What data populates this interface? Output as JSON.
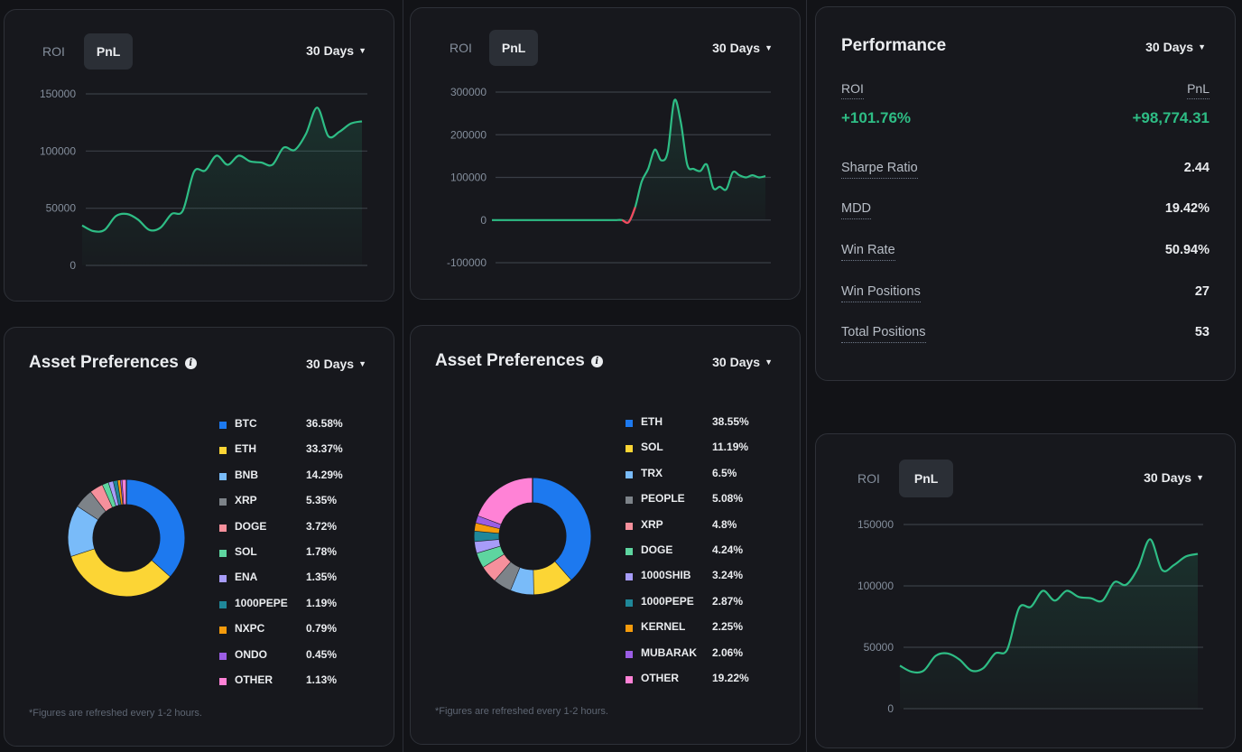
{
  "tabs": {
    "roi": "ROI",
    "pnl": "PnL"
  },
  "period": "30 Days",
  "pnl_chart_a": {
    "chart_data": {
      "type": "area",
      "yticks": [
        "150000",
        "100000",
        "50000",
        "0"
      ],
      "ylim": [
        0,
        150000
      ],
      "values": [
        35000,
        30000,
        31000,
        43000,
        45000,
        40000,
        31000,
        33000,
        45000,
        48000,
        82000,
        83000,
        96000,
        88000,
        96000,
        91000,
        90000,
        88000,
        103000,
        101000,
        115000,
        138000,
        113000,
        117000,
        124000,
        126000
      ]
    }
  },
  "pnl_chart_b": {
    "chart_data": {
      "type": "area",
      "yticks": [
        "300000",
        "200000",
        "100000",
        "0",
        "-100000"
      ],
      "ylim": [
        -100000,
        300000
      ],
      "values": [
        0,
        0,
        0,
        0,
        0,
        0,
        0,
        0,
        0,
        0,
        0,
        0,
        0,
        0,
        0,
        0,
        0,
        0,
        0,
        0,
        0,
        -5000,
        30000,
        90000,
        120000,
        165000,
        140000,
        160000,
        280000,
        230000,
        130000,
        120000,
        115000,
        130000,
        75000,
        78000,
        72000,
        112000,
        105000,
        100000,
        105000,
        100000,
        103000
      ]
    }
  },
  "asset_prefs_a": {
    "title": "Asset Preferences",
    "note": "*Figures are refreshed every 1-2 hours.",
    "chart_data": {
      "type": "pie",
      "labels": [
        "BTC",
        "ETH",
        "BNB",
        "XRP",
        "DOGE",
        "SOL",
        "ENA",
        "1000PEPE",
        "NXPC",
        "ONDO",
        "OTHER"
      ],
      "values": [
        36.58,
        33.37,
        14.29,
        5.35,
        3.72,
        1.78,
        1.35,
        1.19,
        0.79,
        0.45,
        1.13
      ],
      "display": [
        "36.58%",
        "33.37%",
        "14.29%",
        "5.35%",
        "3.72%",
        "1.78%",
        "1.35%",
        "1.19%",
        "0.79%",
        "0.45%",
        "1.13%"
      ],
      "colors": [
        "#1d79ef",
        "#fcd535",
        "#79bbf9",
        "#7d8389",
        "#f6909c",
        "#5ed5a0",
        "#a79cf9",
        "#1f8799",
        "#f59b0c",
        "#9b5de5",
        "#ff82d6"
      ]
    }
  },
  "asset_prefs_b": {
    "title": "Asset Preferences",
    "note": "*Figures are refreshed every 1-2 hours.",
    "chart_data": {
      "type": "pie",
      "labels": [
        "ETH",
        "SOL",
        "TRX",
        "PEOPLE",
        "XRP",
        "DOGE",
        "1000SHIB",
        "1000PEPE",
        "KERNEL",
        "MUBARAK",
        "OTHER"
      ],
      "values": [
        38.55,
        11.19,
        6.5,
        5.08,
        4.8,
        4.24,
        3.24,
        2.87,
        2.25,
        2.06,
        19.22
      ],
      "display": [
        "38.55%",
        "11.19%",
        "6.5%",
        "5.08%",
        "4.8%",
        "4.24%",
        "3.24%",
        "2.87%",
        "2.25%",
        "2.06%",
        "19.22%"
      ],
      "colors": [
        "#1d79ef",
        "#fcd535",
        "#79bbf9",
        "#7d8389",
        "#f6909c",
        "#5ed5a0",
        "#a79cf9",
        "#1f8799",
        "#f59b0c",
        "#9b5de5",
        "#ff82d6"
      ]
    }
  },
  "performance": {
    "title": "Performance",
    "roi_label": "ROI",
    "pnl_label": "PnL",
    "roi_value": "+101.76%",
    "pnl_value": "+98,774.31",
    "metrics": [
      {
        "label": "Sharpe Ratio",
        "value": "2.44"
      },
      {
        "label": "MDD",
        "value": "19.42%"
      },
      {
        "label": "Win Rate",
        "value": "50.94%"
      },
      {
        "label": "Win Positions",
        "value": "27"
      },
      {
        "label": "Total Positions",
        "value": "53"
      }
    ]
  },
  "colors": {
    "positive": "#2ebd85",
    "negative": "#f6465d",
    "grid": "#3a3e46"
  }
}
